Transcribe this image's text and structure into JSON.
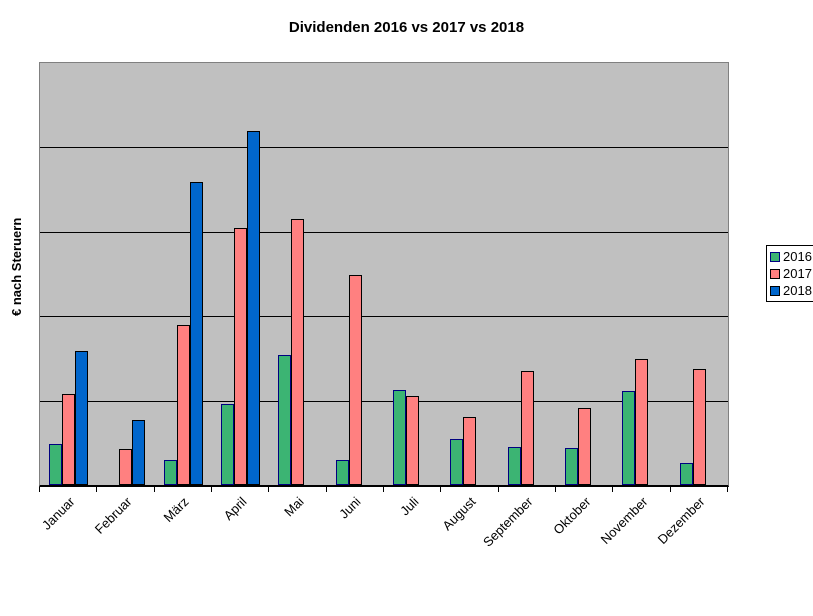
{
  "chart_data": {
    "type": "bar",
    "title": "Dividenden 2016 vs 2017 vs 2018",
    "xlabel": "",
    "ylabel": "€ nach Steruern",
    "categories": [
      "Januar",
      "Februar",
      "März",
      "April",
      "Mai",
      "Juni",
      "Juli",
      "August",
      "September",
      "Oktober",
      "November",
      "Dezember"
    ],
    "series": [
      {
        "name": "2016",
        "fill": "#3CB473",
        "border": "#000080",
        "values": [
          9.7,
          0,
          5.9,
          19.2,
          30.8,
          5.9,
          22.5,
          10.9,
          9.0,
          8.8,
          22.3,
          5.2
        ]
      },
      {
        "name": "2017",
        "fill": "#FF8080",
        "border": "#000000",
        "values": [
          21.6,
          8.5,
          37.9,
          60.9,
          63.0,
          49.8,
          21.1,
          16.1,
          27.0,
          18.2,
          29.9,
          27.5
        ]
      },
      {
        "name": "2018",
        "fill": "#0066CC",
        "border": "#000000",
        "values": [
          31.8,
          15.4,
          71.8,
          83.9,
          0,
          0,
          0,
          0,
          0,
          0,
          0,
          0
        ]
      }
    ],
    "ylim": [
      0,
      100
    ],
    "y_units": "percent of axis max (numeric y tick labels not visible in image)",
    "y_tick_labels_visible": false,
    "gridline_count": 4,
    "grid": "horizontal black lines, 5 equal intervals",
    "legend": {
      "position": "right",
      "entries": [
        "2016",
        "2017",
        "2018"
      ]
    },
    "colors": {
      "plot_bg": "#C0C0C0",
      "gridline": "#000000",
      "axis": "#000000",
      "plot_border": "#808080",
      "legend_bg": "#FFFFFF",
      "legend_border": "#000000",
      "page_bg": "#FFFFFF"
    }
  }
}
